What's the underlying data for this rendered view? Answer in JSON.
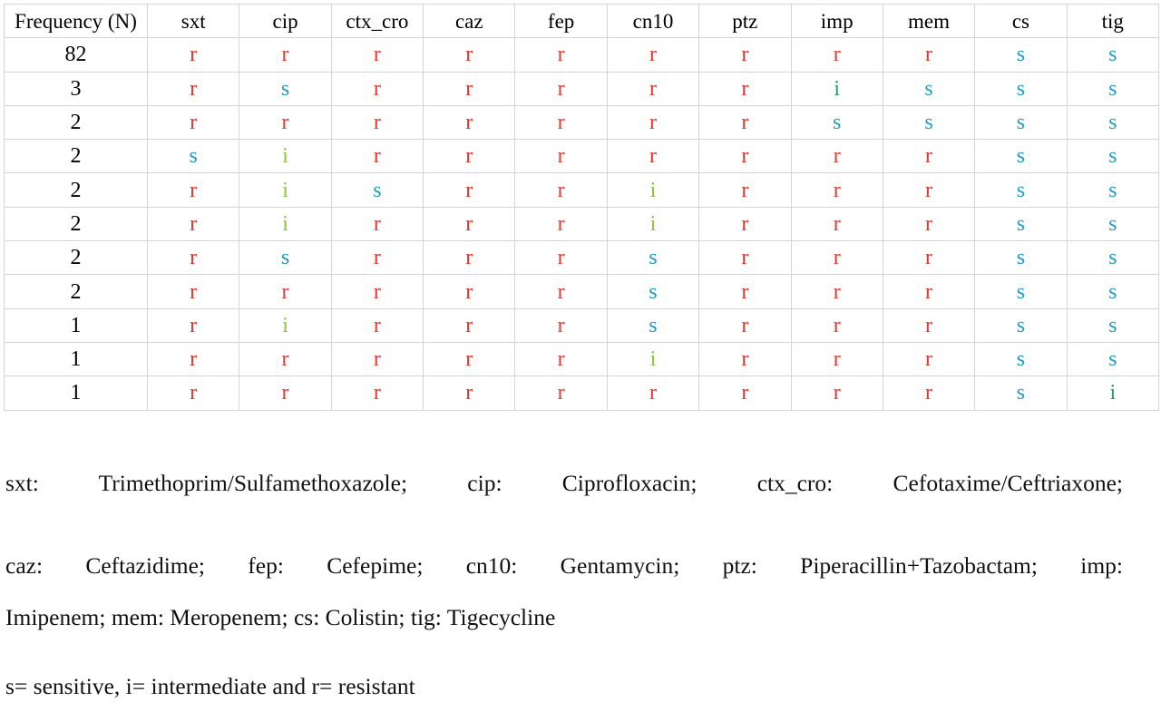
{
  "table": {
    "headers": [
      "Frequency (N)",
      "sxt",
      "cip",
      "ctx_cro",
      "caz",
      "fep",
      "cn10",
      "ptz",
      "imp",
      "mem",
      "cs",
      "tig"
    ],
    "rows": [
      {
        "freq": "82",
        "values": [
          "r",
          "r",
          "r",
          "r",
          "r",
          "r",
          "r",
          "r",
          "r",
          "s",
          "s"
        ]
      },
      {
        "freq": "3",
        "values": [
          "r",
          "s",
          "r",
          "r",
          "r",
          "r",
          "r",
          "i",
          "s",
          "s",
          "s"
        ]
      },
      {
        "freq": "2",
        "values": [
          "r",
          "r",
          "r",
          "r",
          "r",
          "r",
          "r",
          "s",
          "s",
          "s",
          "s"
        ]
      },
      {
        "freq": "2",
        "values": [
          "s",
          "i",
          "r",
          "r",
          "r",
          "r",
          "r",
          "r",
          "r",
          "s",
          "s"
        ]
      },
      {
        "freq": "2",
        "values": [
          "r",
          "i",
          "s",
          "r",
          "r",
          "i",
          "r",
          "r",
          "r",
          "s",
          "s"
        ]
      },
      {
        "freq": "2",
        "values": [
          "r",
          "i",
          "r",
          "r",
          "r",
          "i",
          "r",
          "r",
          "r",
          "s",
          "s"
        ]
      },
      {
        "freq": "2",
        "values": [
          "r",
          "s",
          "r",
          "r",
          "r",
          "s",
          "r",
          "r",
          "r",
          "s",
          "s"
        ]
      },
      {
        "freq": "2",
        "values": [
          "r",
          "r",
          "r",
          "r",
          "r",
          "s",
          "r",
          "r",
          "r",
          "s",
          "s"
        ]
      },
      {
        "freq": "1",
        "values": [
          "r",
          "i",
          "r",
          "r",
          "r",
          "s",
          "r",
          "r",
          "r",
          "s",
          "s"
        ]
      },
      {
        "freq": "1",
        "values": [
          "r",
          "r",
          "r",
          "r",
          "r",
          "i",
          "r",
          "r",
          "r",
          "s",
          "s"
        ]
      },
      {
        "freq": "1",
        "values": [
          "r",
          "r",
          "r",
          "r",
          "r",
          "r",
          "r",
          "r",
          "r",
          "s",
          "i"
        ]
      }
    ]
  },
  "colors": {
    "resistant": "#e8342a",
    "sensitive": "#1f9bc9",
    "intermediate": "#8cc63f",
    "intermediate_dark": "#1ea35a",
    "grid": "#d4d4d4"
  },
  "notes": {
    "line1": "sxt: Trimethoprim/Sulfamethoxazole; cip: Ciprofloxacin; ctx_cro: Cefotaxime/Ceftriaxone;",
    "line2": "caz: Ceftazidime; fep: Cefepime; cn10: Gentamycin; ptz: Piperacillin+Tazobactam; imp:",
    "line3": "Imipenem; mem: Meropenem; cs: Colistin; tig: Tigecycline",
    "legend": "s= sensitive, i= intermediate and r= resistant"
  }
}
